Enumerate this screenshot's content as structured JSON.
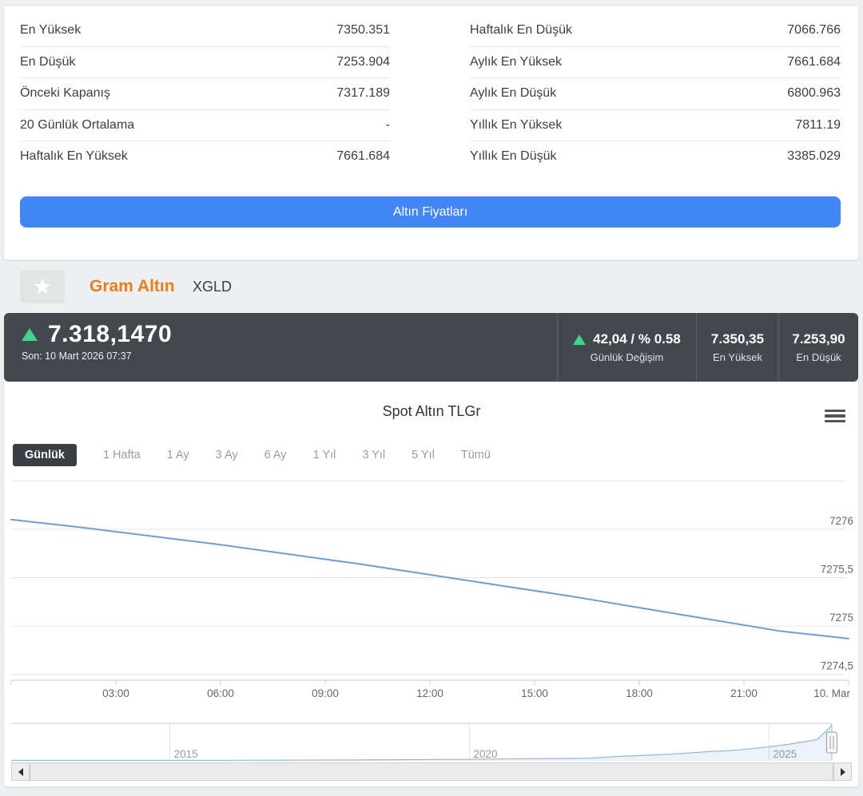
{
  "stats_table": {
    "left": [
      {
        "label": "En Yüksek",
        "value": "7350.351"
      },
      {
        "label": "En Düşük",
        "value": "7253.904"
      },
      {
        "label": "Önceki Kapanış",
        "value": "7317.189"
      },
      {
        "label": "20 Günlük Ortalama",
        "value": "-"
      },
      {
        "label": "Haftalık En Yüksek",
        "value": "7661.684"
      }
    ],
    "right": [
      {
        "label": "Haftalık En Düşük",
        "value": "7066.766"
      },
      {
        "label": "Aylık En Yüksek",
        "value": "7661.684"
      },
      {
        "label": "Aylık En Düşük",
        "value": "6800.963"
      },
      {
        "label": "Yıllık En Yüksek",
        "value": "7811.19"
      },
      {
        "label": "Yıllık En Düşük",
        "value": "3385.029"
      }
    ]
  },
  "gold_button": {
    "label": "Altın Fiyatları",
    "color": "#4287f5"
  },
  "instrument": {
    "name": "Gram Altın",
    "code": "XGLD",
    "name_color": "#e87c1f"
  },
  "price_bar": {
    "bg": "#43474e",
    "up_color": "#44d08e",
    "price": "7.318,1470",
    "last_update": "Son: 10 Mart 2026 07:37",
    "change_value": "42,04 / % 0.58",
    "change_label": "Günlük Değişim",
    "high_value": "7.350,35",
    "high_label": "En Yüksek",
    "low_value": "7.253,90",
    "low_label": "En Düşük"
  },
  "chart": {
    "title": "Spot Altın TLGr",
    "ranges": [
      "Günlük",
      "1 Hafta",
      "1 Ay",
      "3 Ay",
      "6 Ay",
      "1 Yıl",
      "3 Yıl",
      "5 Yıl",
      "Tümü"
    ],
    "active_range": "Günlük"
  },
  "chart_data": [
    {
      "name": "main",
      "type": "line",
      "title": "Spot Altın TLGr",
      "series_color": "#6d9ecf",
      "ylim": [
        7274.44,
        7276.56
      ],
      "yticks": [
        {
          "v": 7276.5,
          "label": ""
        },
        {
          "v": 7276,
          "label": "7276"
        },
        {
          "v": 7275.5,
          "label": "7275,5"
        },
        {
          "v": 7275,
          "label": "7275"
        },
        {
          "v": 7274.5,
          "label": "7274,5"
        }
      ],
      "xdomain_hours": [
        0,
        24
      ],
      "xticks": [
        {
          "h": 0,
          "label": ""
        },
        {
          "h": 3,
          "label": "03:00"
        },
        {
          "h": 6,
          "label": "06:00"
        },
        {
          "h": 9,
          "label": "09:00"
        },
        {
          "h": 12,
          "label": "12:00"
        },
        {
          "h": 15,
          "label": "15:00"
        },
        {
          "h": 18,
          "label": "18:00"
        },
        {
          "h": 21,
          "label": "21:00"
        },
        {
          "h": 24,
          "label": "10. Mar",
          "anchor": "end"
        }
      ],
      "points_hours": [
        0,
        2,
        4,
        6,
        8,
        10,
        12,
        14,
        16,
        18,
        20,
        22,
        24
      ],
      "points_values": [
        7276.1,
        7276.02,
        7275.93,
        7275.84,
        7275.74,
        7275.64,
        7275.53,
        7275.42,
        7275.31,
        7275.19,
        7275.07,
        7274.95,
        7274.87
      ]
    },
    {
      "name": "navigator",
      "type": "area",
      "series_color": "#94b7dc",
      "fill_color": "rgba(109,158,207,0.13)",
      "ylim": [
        0,
        7600
      ],
      "xdomain_years": [
        2012.35,
        2026.05
      ],
      "xticks": [
        {
          "year": 2015,
          "label": "2015"
        },
        {
          "year": 2020,
          "label": "2020"
        },
        {
          "year": 2025,
          "label": "2025"
        }
      ],
      "points_years": [
        2012.35,
        2013,
        2014,
        2015,
        2016,
        2017,
        2018,
        2019,
        2019.8,
        2020.3,
        2020.8,
        2021.5,
        2022,
        2022.5,
        2023,
        2023.5,
        2024,
        2024.3,
        2024.7,
        2025,
        2025.3,
        2025.6,
        2025.8,
        2026.0,
        2026.05
      ],
      "points_values": [
        95,
        95,
        90,
        102,
        118,
        145,
        170,
        240,
        290,
        360,
        430,
        480,
        530,
        900,
        1150,
        1450,
        1900,
        2050,
        2450,
        2850,
        3300,
        3900,
        4300,
        6500,
        7300
      ]
    }
  ]
}
